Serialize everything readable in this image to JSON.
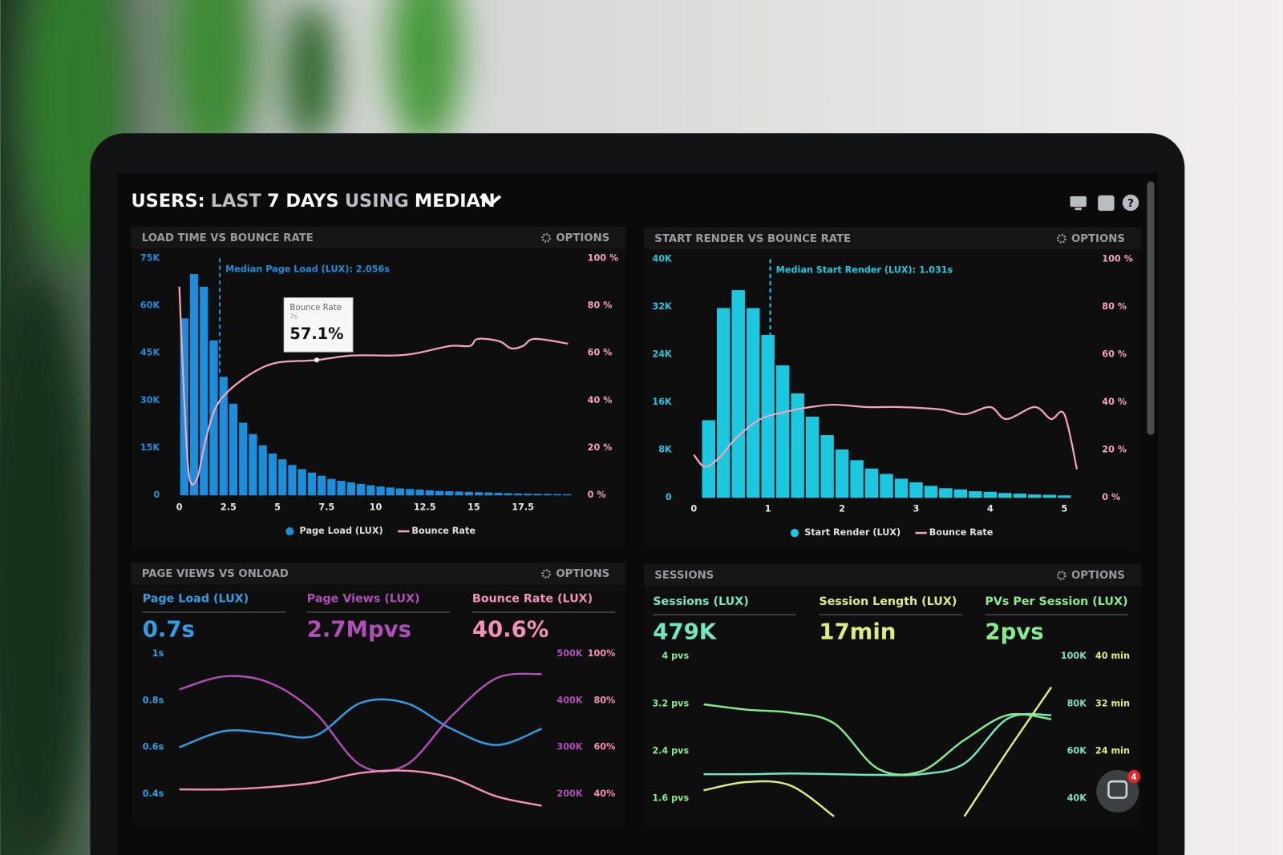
{
  "header": {
    "title": [
      {
        "text": "USERS:",
        "color": "#ffffff"
      },
      {
        "text": "LAST",
        "color": "#b9bcc0"
      },
      {
        "text": "7 DAYS",
        "color": "#ffffff"
      },
      {
        "text": "USING",
        "color": "#b9bcc0"
      },
      {
        "text": "MEDIAN",
        "color": "#ffffff"
      }
    ]
  },
  "options_label": "OPTIONS",
  "notification_count": "4",
  "chart_data": [
    {
      "type": "histogram",
      "title": "LOAD TIME VS BOUNCE RATE",
      "bins": [
        0,
        0.5,
        1,
        1.5,
        2,
        2.5,
        3,
        3.5,
        4,
        4.5,
        5,
        5.5,
        6,
        6.5,
        7,
        7.5,
        8,
        8.5,
        9,
        9.5,
        10,
        10.5,
        11,
        11.5,
        12,
        12.5,
        13,
        13.5,
        14,
        14.5,
        15,
        15.5,
        16,
        16.5,
        17,
        17.5,
        18,
        18.5,
        19,
        19.5,
        20
      ],
      "series": [
        {
          "name": "Page Load (LUX)",
          "color": "#1b8fdc",
          "values": [
            56000,
            70000,
            66000,
            49000,
            37500,
            29000,
            23000,
            19400,
            15800,
            13200,
            11400,
            9600,
            8300,
            7200,
            6200,
            5200,
            4600,
            4100,
            3600,
            3200,
            2800,
            2500,
            2200,
            2000,
            1800,
            1600,
            1400,
            1300,
            1200,
            1100,
            1000,
            900,
            800,
            700,
            600,
            550,
            500,
            450,
            400,
            350
          ]
        },
        {
          "name": "Bounce Rate",
          "color": "#f5a3be",
          "axis": "y2",
          "x": [
            0,
            0.25,
            0.5,
            0.9,
            1.3,
            1.8,
            2.5,
            3.8,
            5.0,
            6.9,
            8.8,
            10.9,
            12.1,
            13.8,
            14.8,
            15.2,
            16.3,
            16.9,
            17.5,
            18.1,
            19.8
          ],
          "values": [
            88,
            40,
            8,
            7,
            22,
            36,
            44,
            52,
            56,
            57,
            59,
            59,
            60,
            63,
            63,
            66,
            65,
            62,
            63,
            66,
            64
          ]
        }
      ],
      "xlim": [
        0,
        20
      ],
      "xticks": [
        0,
        2.5,
        5,
        7.5,
        10,
        12.5,
        15,
        17.5
      ],
      "ylim": [
        0,
        75000
      ],
      "yticks": [
        0,
        {
          "value": 15000,
          "label": "15K"
        },
        {
          "value": 30000,
          "label": "30K"
        },
        {
          "value": 45000,
          "label": "45K"
        },
        {
          "value": 60000,
          "label": "60K"
        },
        {
          "value": 75000,
          "label": "75K"
        }
      ],
      "y2lim": [
        0,
        100
      ],
      "y2ticks": [
        {
          "value": 0,
          "label": "0 %"
        },
        {
          "value": 20,
          "label": "20 %"
        },
        {
          "value": 40,
          "label": "40 %"
        },
        {
          "value": 60,
          "label": "60 %"
        },
        {
          "value": 80,
          "label": "80 %"
        },
        {
          "value": 100,
          "label": "100 %"
        }
      ],
      "median": {
        "value": 2.056,
        "label": "Median Page Load (LUX): 2.056s"
      },
      "tooltip": {
        "series": "Bounce Rate",
        "x": {
          "value": 7,
          "label": "7s"
        },
        "y": {
          "value": 57.1,
          "label": "57.1%"
        }
      },
      "legend": "bottom"
    },
    {
      "type": "histogram",
      "title": "START RENDER VS BOUNCE RATE",
      "bins": [
        0.1,
        0.3,
        0.5,
        0.7,
        0.9,
        1.1,
        1.3,
        1.5,
        1.7,
        1.9,
        2.1,
        2.3,
        2.5,
        2.7,
        2.9,
        3.1,
        3.3,
        3.5,
        3.7,
        3.9,
        4.1,
        4.3,
        4.5,
        4.7,
        4.9,
        5.1
      ],
      "series": [
        {
          "name": "Start Render (LUX)",
          "color": "#1cc8e0",
          "values": [
            13000,
            31800,
            34800,
            31800,
            27300,
            22200,
            17500,
            13600,
            10500,
            8100,
            6300,
            4900,
            4000,
            3200,
            2600,
            2000,
            1600,
            1400,
            1100,
            1000,
            800,
            700,
            550,
            500,
            400
          ]
        },
        {
          "name": "Bounce Rate",
          "color": "#f5a3be",
          "axis": "y2",
          "x": [
            0,
            0.15,
            0.35,
            0.57,
            0.9,
            1.24,
            1.57,
            1.9,
            2.34,
            2.78,
            3.33,
            3.66,
            4.0,
            4.22,
            4.6,
            4.82,
            5.0,
            5.17
          ],
          "values": [
            18,
            13,
            17,
            25,
            33,
            36,
            38,
            39,
            38,
            38,
            37,
            35,
            38,
            33,
            38,
            33,
            35,
            12
          ]
        }
      ],
      "xlim": [
        0,
        5.2
      ],
      "xticks": [
        0,
        1,
        2,
        3,
        4,
        5
      ],
      "ylim": [
        0,
        40000
      ],
      "yticks": [
        0,
        {
          "value": 8000,
          "label": "8K"
        },
        {
          "value": 16000,
          "label": "16K"
        },
        {
          "value": 24000,
          "label": "24K"
        },
        {
          "value": 32000,
          "label": "32K"
        },
        {
          "value": 40000,
          "label": "40K"
        }
      ],
      "y2lim": [
        0,
        100
      ],
      "y2ticks": [
        {
          "value": 0,
          "label": "0 %"
        },
        {
          "value": 20,
          "label": "20 %"
        },
        {
          "value": 40,
          "label": "40 %"
        },
        {
          "value": 60,
          "label": "60 %"
        },
        {
          "value": 80,
          "label": "80 %"
        },
        {
          "value": 100,
          "label": "100 %"
        }
      ],
      "median": {
        "value": 1.031,
        "label": "Median Start Render (LUX): 1.031s"
      },
      "legend": "bottom"
    },
    {
      "type": "line",
      "title": "PAGE VIEWS VS ONLOAD",
      "series": [
        {
          "name": "Page Load (LUX)",
          "summary": "0.7s",
          "color": "#2f9fe6",
          "axis": "y",
          "values": [
            0.6,
            0.67,
            0.66,
            0.65,
            0.79,
            0.79,
            0.68,
            0.61,
            0.68
          ]
        },
        {
          "name": "Page Views (LUX)",
          "summary": "2.7Mpvs",
          "color": "#b04fb8",
          "axis": "y2",
          "values": [
            424000,
            452000,
            438000,
            374000,
            262000,
            262000,
            366000,
            448000,
            457000
          ]
        },
        {
          "name": "Bounce Rate (LUX)",
          "summary": "40.6%",
          "color": "#f490b6",
          "axis": "y3",
          "values": [
            42,
            42,
            43,
            45,
            49,
            50,
            47,
            39,
            35
          ]
        }
      ],
      "ylim": [
        0.3,
        1
      ],
      "yticks": [
        {
          "value": 0.4,
          "label": "0.4s"
        },
        {
          "value": 0.6,
          "label": "0.6s"
        },
        {
          "value": 0.8,
          "label": "0.8s"
        },
        {
          "value": 1,
          "label": "1s"
        }
      ],
      "y2lim": [
        150000,
        500000
      ],
      "y2ticks": [
        {
          "value": 200000,
          "label": "200K"
        },
        {
          "value": 300000,
          "label": "300K"
        },
        {
          "value": 400000,
          "label": "400K"
        },
        {
          "value": 500000,
          "label": "500K"
        }
      ],
      "y3lim": [
        30,
        100
      ],
      "y3ticks": [
        {
          "value": 40,
          "label": "40%"
        },
        {
          "value": 60,
          "label": "60%"
        },
        {
          "value": 80,
          "label": "80%"
        },
        {
          "value": 100,
          "label": "100%"
        }
      ]
    },
    {
      "type": "line",
      "title": "SESSIONS",
      "series": [
        {
          "name": "Sessions (LUX)",
          "summary": "479K",
          "color": "#74e6c0",
          "axis": "y2",
          "values": [
            50300,
            50300,
            50600,
            50300,
            50000,
            50300,
            54800,
            73800,
            75200
          ]
        },
        {
          "name": "Session Length (LUX)",
          "summary": "17min",
          "color": "#dcef7c",
          "axis": "y3",
          "values": [
            17.4,
            18.8,
            18.2,
            13,
            null,
            null,
            13,
            24.1,
            34.8
          ]
        },
        {
          "name": "PVs Per Session (LUX)",
          "summary": "2pvs",
          "color": "#86ec8c",
          "axis": "y",
          "values": [
            3.19,
            3.1,
            3.05,
            2.87,
            2.11,
            2.06,
            2.59,
            3.01,
            2.94
          ]
        }
      ],
      "ylim": [
        1.2,
        4
      ],
      "yticks": [
        {
          "value": 1.6,
          "label": "1.6 pvs"
        },
        {
          "value": 2.4,
          "label": "2.4 pvs"
        },
        {
          "value": 3.2,
          "label": "3.2 pvs"
        },
        {
          "value": 4,
          "label": "4 pvs"
        }
      ],
      "y2lim": [
        30000,
        100000
      ],
      "y2ticks": [
        {
          "value": 40000,
          "label": "40K"
        },
        {
          "value": 60000,
          "label": "60K"
        },
        {
          "value": 80000,
          "label": "80K"
        },
        {
          "value": 100000,
          "label": "100K"
        }
      ],
      "y3lim": [
        12,
        40
      ],
      "y3ticks": [
        {
          "value": 24,
          "label": "24 min"
        },
        {
          "value": 32,
          "label": "32 min"
        },
        {
          "value": 40,
          "label": "40 min"
        }
      ]
    }
  ]
}
